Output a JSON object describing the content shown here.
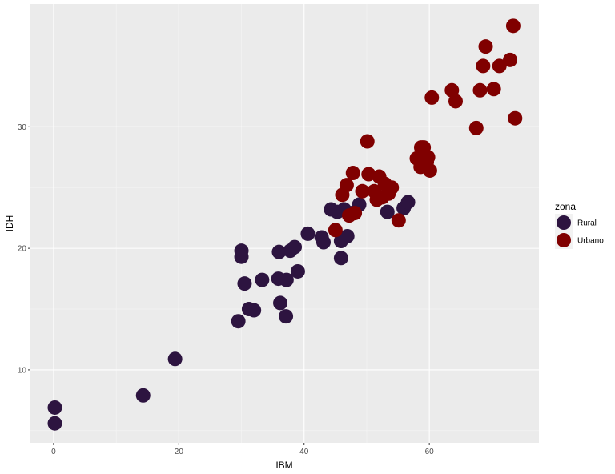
{
  "chart_data": {
    "type": "scatter",
    "xlabel": "IBM",
    "ylabel": "IDH",
    "xlim": [
      -3.7,
      77.5
    ],
    "ylim": [
      4.0,
      40.1
    ],
    "x_ticks": [
      0,
      20,
      40,
      60
    ],
    "y_ticks": [
      10,
      20,
      30
    ],
    "grid": true,
    "legend": {
      "title": "zona",
      "placement": "right"
    },
    "series": [
      {
        "name": "Rural",
        "color": "#2d1440",
        "points": [
          [
            0.2,
            6.9
          ],
          [
            0.2,
            5.6
          ],
          [
            14.3,
            7.9
          ],
          [
            19.4,
            10.9
          ],
          [
            29.5,
            14.0
          ],
          [
            31.2,
            15.0
          ],
          [
            32.0,
            14.9
          ],
          [
            30.0,
            19.8
          ],
          [
            30.0,
            19.3
          ],
          [
            30.5,
            17.1
          ],
          [
            33.3,
            17.4
          ],
          [
            35.9,
            17.5
          ],
          [
            36.2,
            15.5
          ],
          [
            37.1,
            14.4
          ],
          [
            37.2,
            17.4
          ],
          [
            36.0,
            19.7
          ],
          [
            37.8,
            19.8
          ],
          [
            38.5,
            20.1
          ],
          [
            39.0,
            18.1
          ],
          [
            40.6,
            21.2
          ],
          [
            42.8,
            20.9
          ],
          [
            43.1,
            20.5
          ],
          [
            44.3,
            23.2
          ],
          [
            45.3,
            23.0
          ],
          [
            45.9,
            20.6
          ],
          [
            45.9,
            19.2
          ],
          [
            46.4,
            23.2
          ],
          [
            46.9,
            21.0
          ],
          [
            47.5,
            22.9
          ],
          [
            48.8,
            23.6
          ],
          [
            53.3,
            23.0
          ],
          [
            55.9,
            23.3
          ],
          [
            56.6,
            23.8
          ]
        ]
      },
      {
        "name": "Urbano",
        "color": "#800000",
        "points": [
          [
            45.0,
            21.5
          ],
          [
            46.1,
            24.4
          ],
          [
            46.8,
            25.2
          ],
          [
            47.2,
            22.7
          ],
          [
            48.1,
            22.9
          ],
          [
            47.8,
            26.2
          ],
          [
            49.3,
            24.7
          ],
          [
            50.1,
            28.8
          ],
          [
            50.3,
            26.1
          ],
          [
            51.2,
            24.7
          ],
          [
            51.6,
            24.0
          ],
          [
            52.0,
            25.9
          ],
          [
            52.5,
            24.2
          ],
          [
            52.9,
            25.3
          ],
          [
            53.5,
            24.5
          ],
          [
            54.0,
            25.0
          ],
          [
            55.1,
            22.3
          ],
          [
            58.0,
            27.4
          ],
          [
            58.6,
            26.7
          ],
          [
            58.7,
            28.3
          ],
          [
            59.1,
            28.3
          ],
          [
            59.6,
            27.1
          ],
          [
            59.8,
            27.5
          ],
          [
            60.1,
            26.4
          ],
          [
            60.4,
            32.4
          ],
          [
            63.6,
            33.0
          ],
          [
            64.2,
            32.1
          ],
          [
            67.5,
            29.9
          ],
          [
            68.1,
            33.0
          ],
          [
            68.6,
            35.0
          ],
          [
            69.0,
            36.6
          ],
          [
            70.3,
            33.1
          ],
          [
            71.2,
            35.0
          ],
          [
            72.9,
            35.5
          ],
          [
            73.4,
            38.3
          ],
          [
            73.7,
            30.7
          ]
        ]
      }
    ]
  }
}
